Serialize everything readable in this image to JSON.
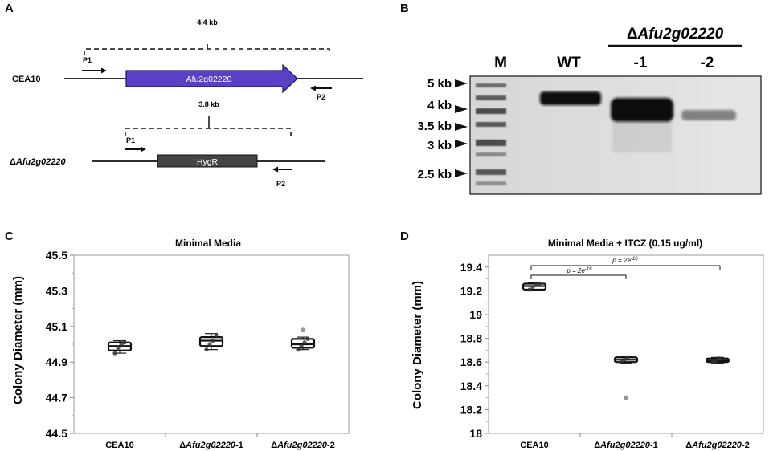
{
  "panels": {
    "a": {
      "letter": "A",
      "wt_strain": "CEA10",
      "wt_size": "4.4 kb",
      "gene_label": "Afu2g02220",
      "mut_prefix": "Δ",
      "mut_name": "Afu2g02220",
      "mut_size": "3.8 kb",
      "marker_label": "HygR",
      "primer1": "P1",
      "primer2": "P2",
      "colors": {
        "gene": "#5b3fc4",
        "marker": "#444444"
      }
    },
    "b": {
      "letter": "B",
      "group_prefix": "Δ",
      "group_name": "Afu2g02220",
      "lanes": [
        "M",
        "WT",
        "-1",
        "-2"
      ],
      "ladder": [
        "5 kb",
        "4 kb",
        "3.5 kb",
        "3 kb",
        "2.5 kb"
      ]
    },
    "c": {
      "letter": "C"
    },
    "d": {
      "letter": "D",
      "sig_label_1": "p = 2e",
      "sig_exp_1": "-16",
      "sig_label_2": "p = 2e",
      "sig_exp_2": "-16"
    }
  },
  "chart_data": [
    {
      "type": "box",
      "title": "Minimal Media",
      "ylabel": "Colony Diameter (mm)",
      "xlabel": "",
      "ylim": [
        44.5,
        45.5
      ],
      "yticks": [
        "45.5",
        "45.3",
        "45.1",
        "44.9",
        "44.7",
        "44.5"
      ],
      "categories": [
        {
          "prefix": "",
          "name": "CEA10",
          "suffix": ""
        },
        {
          "prefix": "Δ",
          "name": "Afu2g02220",
          "suffix": "-1"
        },
        {
          "prefix": "Δ",
          "name": "Afu2g02220",
          "suffix": "-2"
        }
      ],
      "boxes": [
        {
          "min": 44.95,
          "q1": 44.965,
          "median": 44.99,
          "q3": 45.01,
          "max": 45.02,
          "points": [
            44.95,
            44.98,
            45.0,
            45.01
          ],
          "outliers": []
        },
        {
          "min": 44.97,
          "q1": 44.99,
          "median": 45.02,
          "q3": 45.04,
          "max": 45.06,
          "points": [
            44.97,
            45.0,
            45.02,
            45.05
          ],
          "outliers": []
        },
        {
          "min": 44.97,
          "q1": 44.98,
          "median": 45.0,
          "q3": 45.03,
          "max": 45.04,
          "points": [
            44.97,
            44.99,
            45.01,
            45.03
          ],
          "outliers": [
            45.08
          ]
        }
      ]
    },
    {
      "type": "box",
      "title": "Minimal Media + ITCZ (0.15 ug/ml)",
      "ylabel": "Colony Diameter (mm)",
      "xlabel": "",
      "ylim": [
        18.0,
        19.5
      ],
      "yticks": [
        "19.4",
        "19.2",
        "19",
        "18.8",
        "18.6",
        "18.4",
        "18.2",
        "18"
      ],
      "categories": [
        {
          "prefix": "",
          "name": "CEA10",
          "suffix": ""
        },
        {
          "prefix": "Δ",
          "name": "Afu2g02220",
          "suffix": "-1"
        },
        {
          "prefix": "Δ",
          "name": "Afu2g02220",
          "suffix": "-2"
        }
      ],
      "boxes": [
        {
          "min": 19.2,
          "q1": 19.21,
          "median": 19.24,
          "q3": 19.26,
          "max": 19.27,
          "points": [
            19.21,
            19.23,
            19.25,
            19.26
          ],
          "outliers": []
        },
        {
          "min": 18.59,
          "q1": 18.6,
          "median": 18.62,
          "q3": 18.64,
          "max": 18.65,
          "points": [
            18.6,
            18.62,
            18.64
          ],
          "outliers": [
            18.3
          ]
        },
        {
          "min": 18.59,
          "q1": 18.6,
          "median": 18.61,
          "q3": 18.63,
          "max": 18.64,
          "points": [
            18.6,
            18.61,
            18.63
          ],
          "outliers": []
        }
      ]
    }
  ]
}
